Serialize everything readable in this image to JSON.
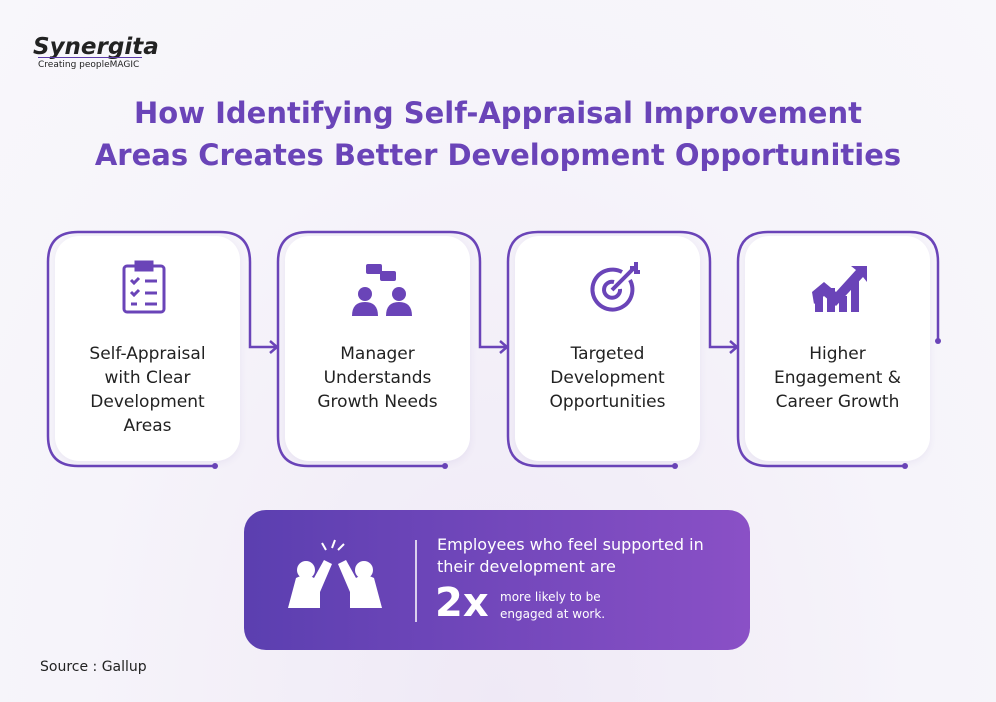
{
  "logo": {
    "name": "Synergita",
    "tagline": "Creating peopleMAGIC"
  },
  "header": {
    "title_lines": [
      "How Identifying Self-Appraisal Improvement",
      "Areas Creates Better Development Opportunities"
    ]
  },
  "steps": [
    {
      "label_lines": [
        "Self-Appraisal",
        "with Clear",
        "Development",
        "Areas"
      ]
    },
    {
      "label_lines": [
        "Manager",
        "Understands",
        "Growth Needs"
      ]
    },
    {
      "label_lines": [
        "Targeted",
        "Development",
        "Opportunities"
      ]
    },
    {
      "label_lines": [
        "Higher",
        "Engagement &",
        "Career Growth"
      ]
    }
  ],
  "callout": {
    "lines": [
      "Employees who feel supported in",
      "their development are"
    ],
    "highlight": "2x",
    "detail_lines": [
      "more likely to be",
      "engaged at work."
    ]
  },
  "footer": {
    "source": "Source : Gallup"
  }
}
